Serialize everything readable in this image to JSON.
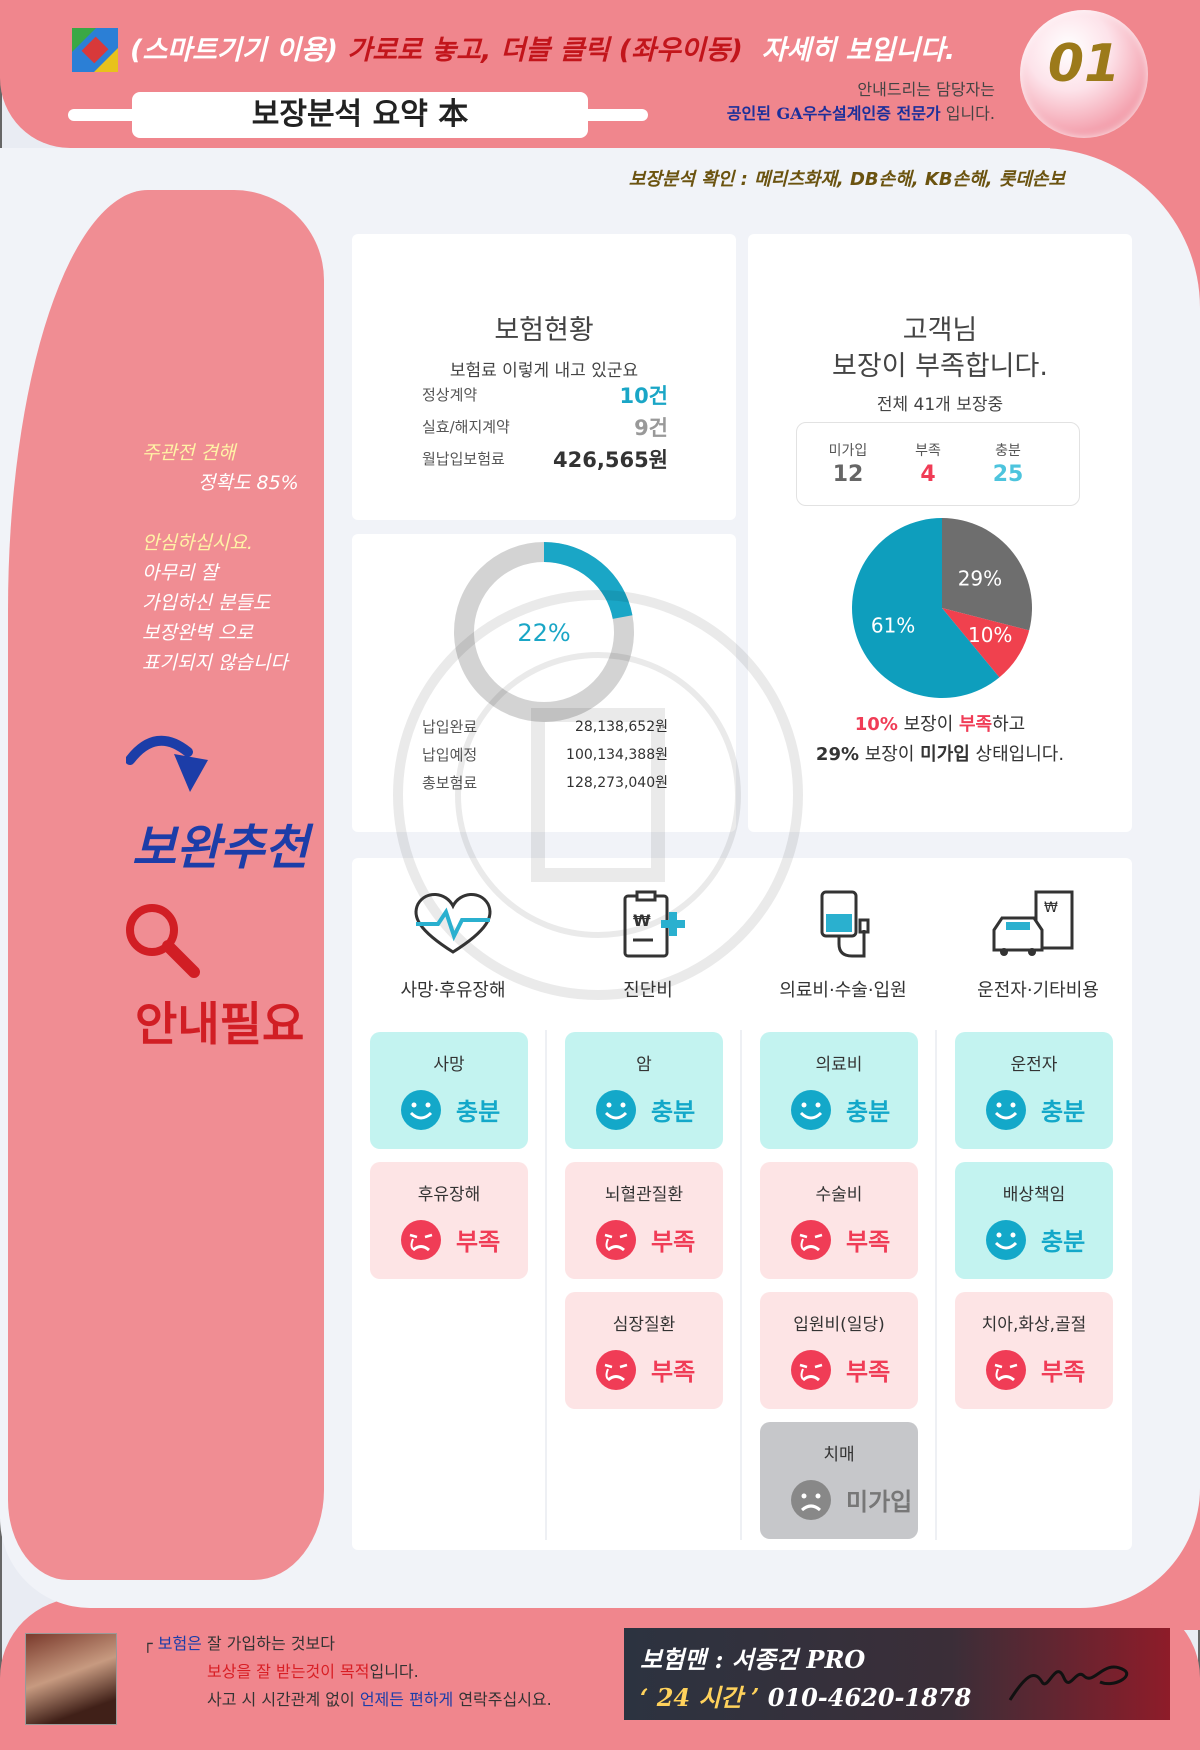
{
  "header": {
    "instruction_prefix": "(스마트기기 이용)",
    "instruction_red": "가로로 놓고, 더블 클릭 (좌우이동)",
    "instruction_suffix": "자세히 보입니다.",
    "title": "보장분석 요약 本",
    "guide_line1": "안내드리는 담당자는",
    "guide_line2_bold": "공인된 GA우수설계인증 전문가",
    "guide_line2_tail": " 입니다.",
    "page_number": "01",
    "check_line": "보장분석 확인 : 메리츠화재, DB손해, KB손해, 롯데손보"
  },
  "sidebar": {
    "opinion_line1": "주관전 견해",
    "opinion_line2": "정확도 85%",
    "reassure": "안심하십시요.",
    "msg1": "아무리 잘",
    "msg2": "가입하신 분들도",
    "msg3": "보장완벽 으로",
    "msg4": "표기되지 않습니다",
    "supplement": "보완추천",
    "needs_guide": "안내필요"
  },
  "insurance_status": {
    "title": "보험현황",
    "subtitle": "보험료 이렇게 내고 있군요",
    "rows": [
      {
        "label": "정상계약",
        "value": "10건",
        "color": "#1aa6c6"
      },
      {
        "label": "실효/해지계약",
        "value": "9건",
        "color": "#999999"
      },
      {
        "label": "월납입보험료",
        "value": "426,565원",
        "color": "#333333"
      }
    ]
  },
  "payment": {
    "percent_label": "22%",
    "percent": 22,
    "rows": [
      {
        "label": "납입완료",
        "value": "28,138,652원"
      },
      {
        "label": "납입예정",
        "value": "100,134,388원"
      },
      {
        "label": "총보험료",
        "value": "128,273,040원"
      }
    ]
  },
  "coverage": {
    "title1": "고객님",
    "title2": "보장이 부족합니다.",
    "subtitle": "전체 41개 보장중",
    "stats": [
      {
        "label": "미가입",
        "value": "12",
        "color": "#666666"
      },
      {
        "label": "부족",
        "value": "4",
        "color": "#f03c56"
      },
      {
        "label": "충분",
        "value": "25",
        "color": "#4dc4dd"
      }
    ],
    "summary1_pct": "10%",
    "summary1_mid": " 보장이 ",
    "summary1_red": "부족",
    "summary1_tail": "하고",
    "summary2_pct": "29%",
    "summary2_mid": " 보장이 ",
    "summary2_bold": "미가입",
    "summary2_tail": " 상태입니다."
  },
  "chart_data": {
    "type": "pie",
    "categories": [
      "충분",
      "미가입",
      "부족"
    ],
    "values": [
      61,
      29,
      10
    ],
    "labels": [
      "61%",
      "29%",
      "10%"
    ],
    "colors": [
      "#0e9ebd",
      "#6e6e6e",
      "#f0414e"
    ]
  },
  "categories": [
    {
      "label": "사망·후유장해",
      "icon": "heart-pulse-icon"
    },
    {
      "label": "진단비",
      "icon": "clipboard-medical-icon"
    },
    {
      "label": "의료비·수술·입원",
      "icon": "iv-drip-icon"
    },
    {
      "label": "운전자·기타비용",
      "icon": "car-document-icon"
    }
  ],
  "tiles": [
    [
      {
        "name": "사망",
        "status": "충분",
        "kind": "good"
      },
      {
        "name": "후유장해",
        "status": "부족",
        "kind": "bad"
      }
    ],
    [
      {
        "name": "암",
        "status": "충분",
        "kind": "good"
      },
      {
        "name": "뇌혈관질환",
        "status": "부족",
        "kind": "bad"
      },
      {
        "name": "심장질환",
        "status": "부족",
        "kind": "bad"
      }
    ],
    [
      {
        "name": "의료비",
        "status": "충분",
        "kind": "good"
      },
      {
        "name": "수술비",
        "status": "부족",
        "kind": "bad"
      },
      {
        "name": "입원비(일당)",
        "status": "부족",
        "kind": "bad"
      },
      {
        "name": "치매",
        "status": "미가입",
        "kind": "none"
      }
    ],
    [
      {
        "name": "운전자",
        "status": "충분",
        "kind": "good"
      },
      {
        "name": "배상책임",
        "status": "충분",
        "kind": "good"
      },
      {
        "name": "치아,화상,골절",
        "status": "부족",
        "kind": "bad"
      }
    ]
  ],
  "footer": {
    "line1a": "보험은",
    "line1b": " 잘 가입하는 것보다",
    "line2a": "보상을 잘 받는것이 목적",
    "line2b": "입니다.",
    "line3a": "사고 시 시간관계 없이 ",
    "line3b": "언제든 편하게",
    "line3c": " 연락주십시요.",
    "name_line": "보험맨 : 서종건 PRO",
    "hours": "‘ 24 시간 ’",
    "phone": " 010-4620-1878"
  }
}
